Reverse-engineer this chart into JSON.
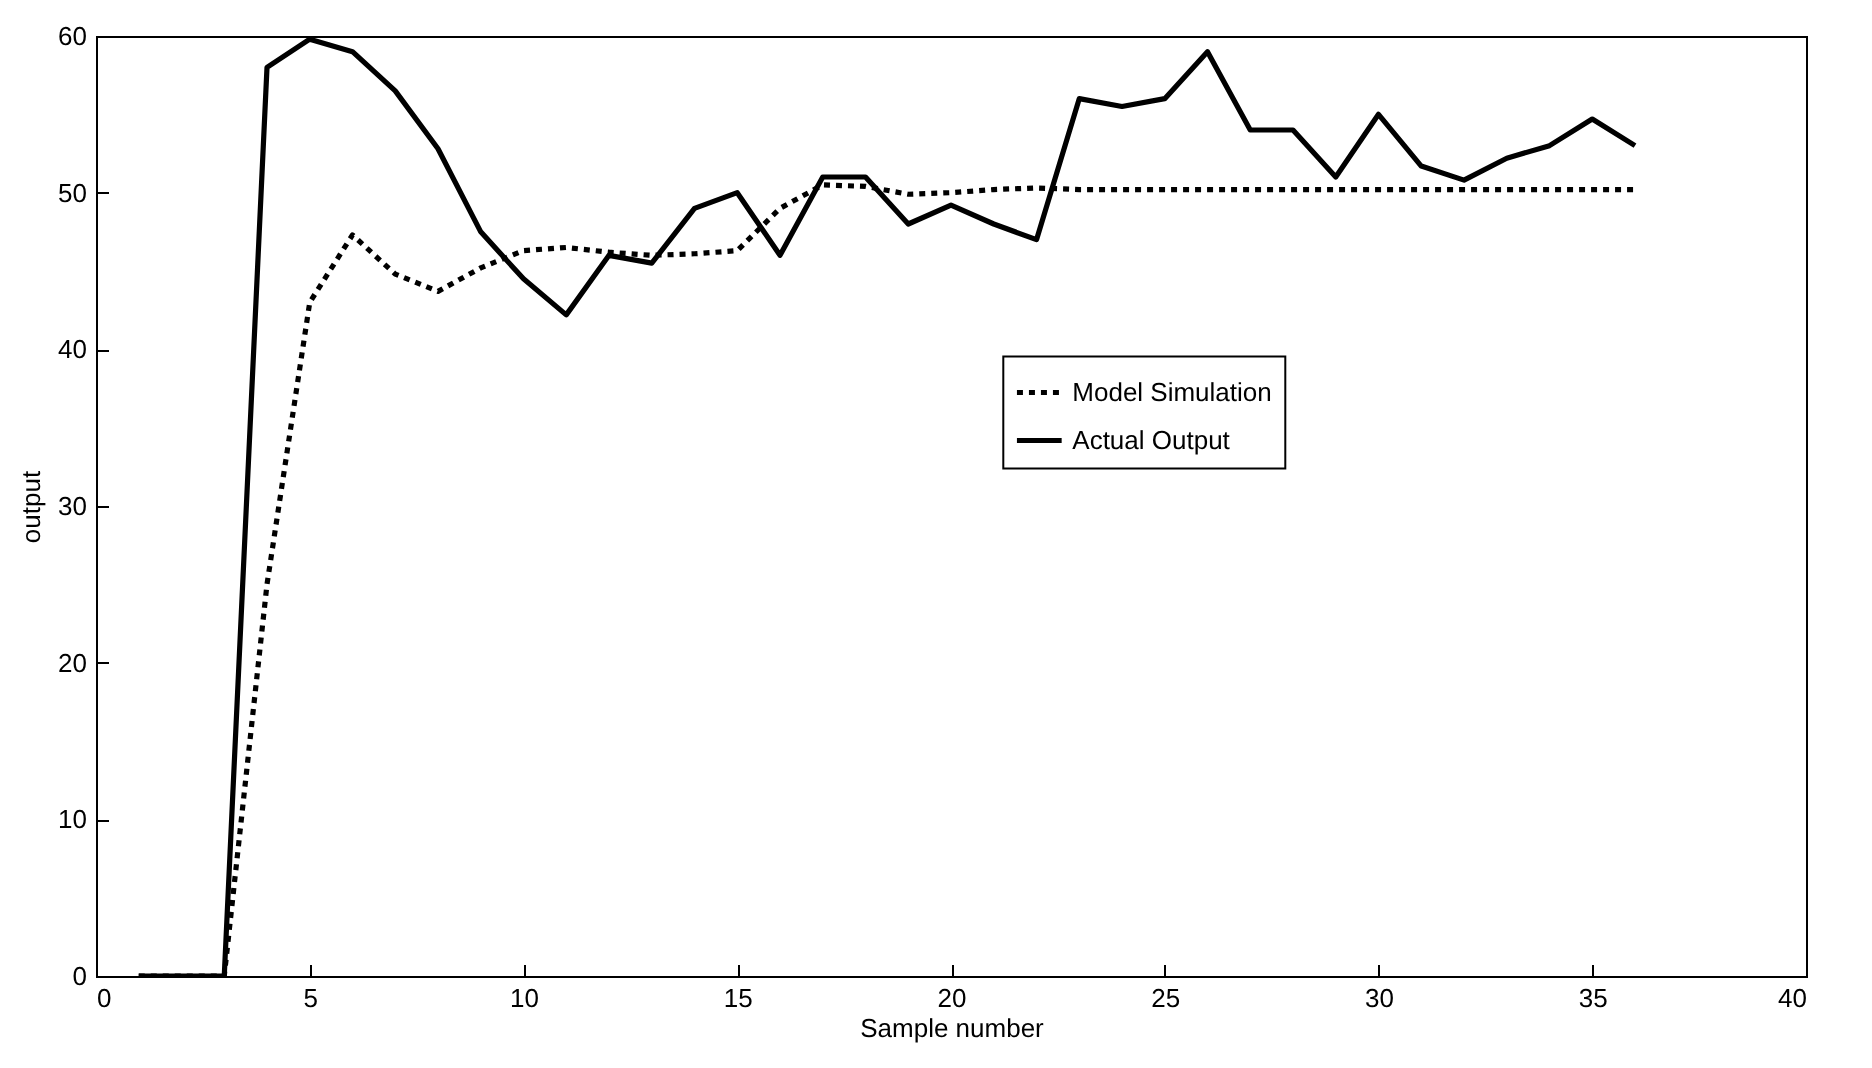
{
  "chart_data": {
    "type": "line",
    "xlabel": "Sample number",
    "ylabel": "output",
    "x": [
      1,
      2,
      3,
      4,
      5,
      6,
      7,
      8,
      9,
      10,
      11,
      12,
      13,
      14,
      15,
      16,
      17,
      18,
      19,
      20,
      21,
      22,
      23,
      24,
      25,
      26,
      27,
      28,
      29,
      30,
      31,
      32,
      33,
      34,
      35,
      36
    ],
    "series": [
      {
        "name": "Model Simulation",
        "color": "#000000",
        "line_style": "dotted",
        "values": [
          0,
          0,
          0,
          25,
          43,
          47.3,
          44.8,
          43.7,
          45.2,
          46.3,
          46.5,
          46.2,
          46,
          46.1,
          46.3,
          49,
          50.5,
          50.4,
          49.9,
          50,
          50.2,
          50.3,
          50.2,
          50.2,
          50.2,
          50.2,
          50.2,
          50.2,
          50.2,
          50.2,
          50.2,
          50.2,
          50.2,
          50.2,
          50.2,
          50.2
        ]
      },
      {
        "name": "Actual Output",
        "color": "#000000",
        "line_style": "solid",
        "values": [
          0,
          0,
          0,
          58,
          59.8,
          59,
          56.5,
          52.8,
          47.5,
          44.5,
          42.2,
          46,
          45.5,
          49,
          50,
          46,
          51,
          51,
          48,
          49.2,
          48,
          47,
          56,
          55.5,
          56,
          59,
          54,
          54,
          51,
          55,
          51.7,
          50.8,
          52.2,
          53,
          54.7,
          53
        ]
      }
    ],
    "xlim": [
      0,
      40
    ],
    "ylim": [
      0,
      60
    ],
    "xticks": [
      0,
      5,
      10,
      15,
      20,
      25,
      30,
      35,
      40
    ],
    "yticks": [
      0,
      10,
      20,
      30,
      40,
      50,
      60
    ],
    "grid": false,
    "legend": "right",
    "marker": "none"
  }
}
